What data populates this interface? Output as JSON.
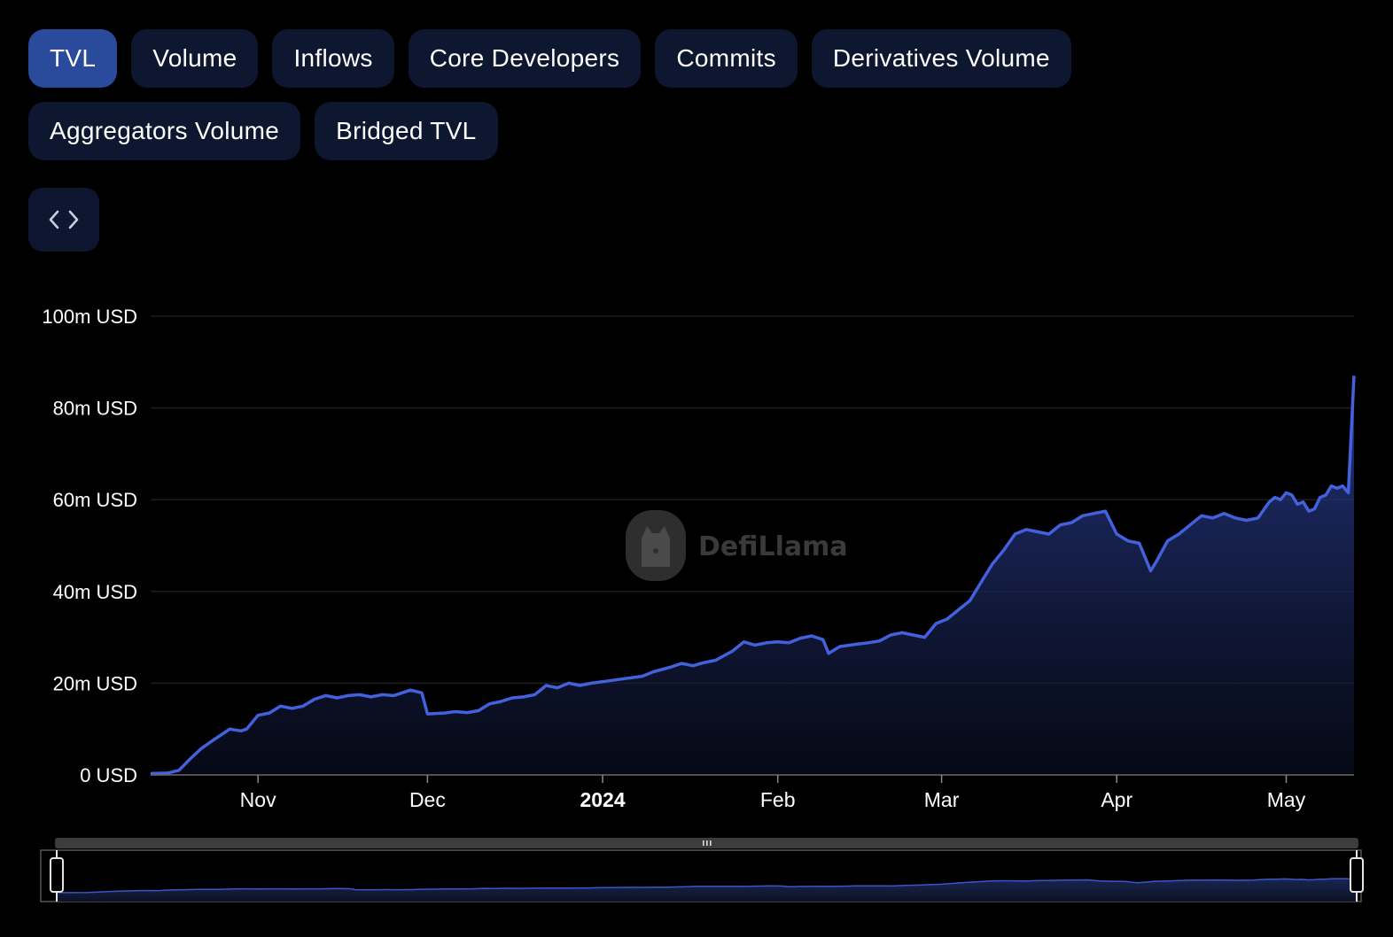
{
  "tabs": [
    {
      "label": "TVL",
      "active": true
    },
    {
      "label": "Volume"
    },
    {
      "label": "Inflows"
    },
    {
      "label": "Core Developers"
    },
    {
      "label": "Commits"
    },
    {
      "label": "Derivatives Volume"
    },
    {
      "label": "Aggregators Volume"
    },
    {
      "label": "Bridged TVL"
    }
  ],
  "embed_icon": "code-icon",
  "watermark": {
    "text": "DefiLlama",
    "icon": "llama-logo"
  },
  "colors": {
    "line": "#4361dc",
    "tab_bg": "#0d1730",
    "tab_active": "#2a4a9c"
  },
  "chart_data": {
    "type": "area",
    "title": "",
    "xlabel": "",
    "ylabel": "",
    "ylim": [
      0,
      100
    ],
    "y_unit": "m USD",
    "y_ticks": [
      "0 USD",
      "20m USD",
      "40m USD",
      "60m USD",
      "80m USD",
      "100m USD"
    ],
    "x_ticks": [
      {
        "label": "Nov",
        "date": "2023-11-01"
      },
      {
        "label": "Dec",
        "date": "2023-12-01"
      },
      {
        "label": "2024",
        "date": "2024-01-01",
        "bold": true
      },
      {
        "label": "Feb",
        "date": "2024-02-01"
      },
      {
        "label": "Mar",
        "date": "2024-03-01"
      },
      {
        "label": "Apr",
        "date": "2024-04-01"
      },
      {
        "label": "May",
        "date": "2024-05-01"
      }
    ],
    "x_range": [
      "2023-10-13",
      "2024-05-13"
    ],
    "grid": true,
    "legend": "none",
    "series": [
      {
        "points": [
          [
            "2023-10-13",
            0.3
          ],
          [
            "2023-10-16",
            0.4
          ],
          [
            "2023-10-18",
            1.0
          ],
          [
            "2023-10-20",
            3.5
          ],
          [
            "2023-10-22",
            5.8
          ],
          [
            "2023-10-24",
            7.5
          ],
          [
            "2023-10-27",
            10.0
          ],
          [
            "2023-10-29",
            9.6
          ],
          [
            "2023-10-30",
            10.0
          ],
          [
            "2023-11-01",
            13.0
          ],
          [
            "2023-11-03",
            13.5
          ],
          [
            "2023-11-05",
            15.0
          ],
          [
            "2023-11-07",
            14.5
          ],
          [
            "2023-11-09",
            15.0
          ],
          [
            "2023-11-11",
            16.5
          ],
          [
            "2023-11-13",
            17.3
          ],
          [
            "2023-11-15",
            16.8
          ],
          [
            "2023-11-17",
            17.3
          ],
          [
            "2023-11-19",
            17.5
          ],
          [
            "2023-11-21",
            17.0
          ],
          [
            "2023-11-23",
            17.5
          ],
          [
            "2023-11-25",
            17.3
          ],
          [
            "2023-11-28",
            18.5
          ],
          [
            "2023-11-30",
            17.9
          ],
          [
            "2023-12-01",
            13.3
          ],
          [
            "2023-12-04",
            13.5
          ],
          [
            "2023-12-06",
            13.8
          ],
          [
            "2023-12-08",
            13.6
          ],
          [
            "2023-12-10",
            14.0
          ],
          [
            "2023-12-12",
            15.5
          ],
          [
            "2023-12-14",
            16.0
          ],
          [
            "2023-12-16",
            16.8
          ],
          [
            "2023-12-18",
            17.0
          ],
          [
            "2023-12-20",
            17.5
          ],
          [
            "2023-12-22",
            19.5
          ],
          [
            "2023-12-24",
            19.0
          ],
          [
            "2023-12-26",
            20.0
          ],
          [
            "2023-12-28",
            19.5
          ],
          [
            "2023-12-30",
            20.0
          ],
          [
            "2024-01-02",
            20.5
          ],
          [
            "2024-01-05",
            21.0
          ],
          [
            "2024-01-08",
            21.5
          ],
          [
            "2024-01-10",
            22.5
          ],
          [
            "2024-01-13",
            23.5
          ],
          [
            "2024-01-15",
            24.3
          ],
          [
            "2024-01-17",
            23.8
          ],
          [
            "2024-01-19",
            24.5
          ],
          [
            "2024-01-21",
            25.0
          ],
          [
            "2024-01-24",
            27.0
          ],
          [
            "2024-01-26",
            29.0
          ],
          [
            "2024-01-28",
            28.3
          ],
          [
            "2024-01-30",
            28.8
          ],
          [
            "2024-02-01",
            29.0
          ],
          [
            "2024-02-03",
            28.8
          ],
          [
            "2024-02-05",
            29.8
          ],
          [
            "2024-02-07",
            30.3
          ],
          [
            "2024-02-09",
            29.5
          ],
          [
            "2024-02-10",
            26.5
          ],
          [
            "2024-02-12",
            28.0
          ],
          [
            "2024-02-15",
            28.5
          ],
          [
            "2024-02-17",
            28.8
          ],
          [
            "2024-02-19",
            29.2
          ],
          [
            "2024-02-21",
            30.5
          ],
          [
            "2024-02-23",
            31.0
          ],
          [
            "2024-02-25",
            30.5
          ],
          [
            "2024-02-27",
            30.0
          ],
          [
            "2024-02-29",
            33.0
          ],
          [
            "2024-03-02",
            34.0
          ],
          [
            "2024-03-04",
            36.0
          ],
          [
            "2024-03-06",
            38.0
          ],
          [
            "2024-03-08",
            42.0
          ],
          [
            "2024-03-10",
            46.0
          ],
          [
            "2024-03-12",
            49.0
          ],
          [
            "2024-03-14",
            52.5
          ],
          [
            "2024-03-16",
            53.5
          ],
          [
            "2024-03-18",
            53.0
          ],
          [
            "2024-03-20",
            52.5
          ],
          [
            "2024-03-22",
            54.5
          ],
          [
            "2024-03-24",
            55.0
          ],
          [
            "2024-03-26",
            56.5
          ],
          [
            "2024-03-28",
            57.0
          ],
          [
            "2024-03-30",
            57.5
          ],
          [
            "2024-04-01",
            52.5
          ],
          [
            "2024-04-03",
            51.0
          ],
          [
            "2024-04-05",
            50.5
          ],
          [
            "2024-04-07",
            44.5
          ],
          [
            "2024-04-08",
            46.5
          ],
          [
            "2024-04-10",
            51.0
          ],
          [
            "2024-04-12",
            52.5
          ],
          [
            "2024-04-14",
            54.5
          ],
          [
            "2024-04-16",
            56.5
          ],
          [
            "2024-04-18",
            56.0
          ],
          [
            "2024-04-20",
            57.0
          ],
          [
            "2024-04-22",
            56.0
          ],
          [
            "2024-04-24",
            55.5
          ],
          [
            "2024-04-26",
            56.0
          ],
          [
            "2024-04-28",
            59.5
          ],
          [
            "2024-04-29",
            60.5
          ],
          [
            "2024-04-30",
            60.0
          ],
          [
            "2024-05-01",
            61.5
          ],
          [
            "2024-05-02",
            61.0
          ],
          [
            "2024-05-03",
            59.0
          ],
          [
            "2024-05-04",
            59.5
          ],
          [
            "2024-05-05",
            57.5
          ],
          [
            "2024-05-06",
            58.0
          ],
          [
            "2024-05-07",
            60.5
          ],
          [
            "2024-05-08",
            61.0
          ],
          [
            "2024-05-09",
            63.0
          ],
          [
            "2024-05-10",
            62.5
          ],
          [
            "2024-05-11",
            63.0
          ],
          [
            "2024-05-12",
            61.5
          ],
          [
            "2024-05-13",
            87.0
          ]
        ]
      }
    ]
  }
}
